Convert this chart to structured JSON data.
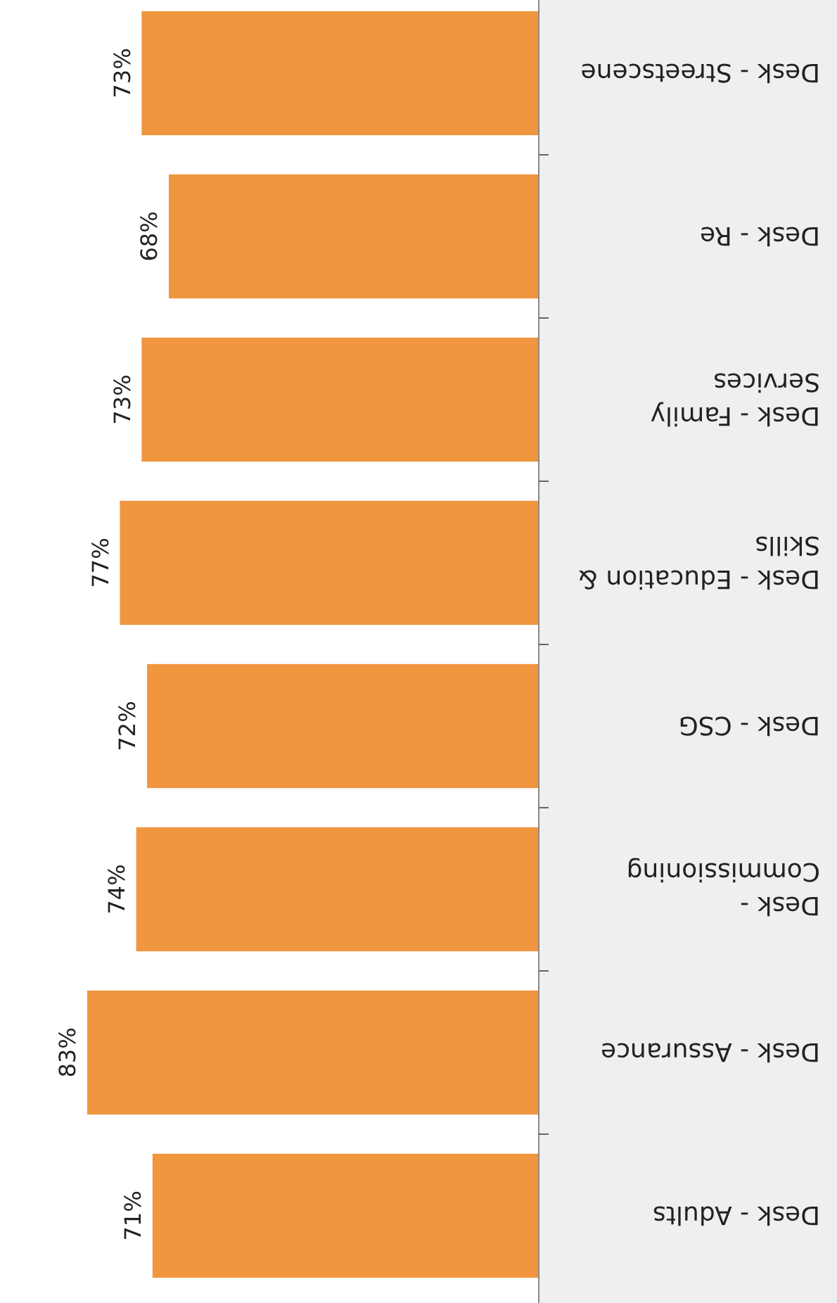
{
  "chart_data": {
    "type": "bar",
    "orientation": "horizontal",
    "categories": [
      "Desk - Streetscene",
      "Desk - Re",
      "Desk - Family Services",
      "Desk - Education & Skills",
      "Desk - CSG",
      "Desk - Commissioning",
      "Desk - Assurance",
      "Desk - Adults"
    ],
    "values": [
      73,
      68,
      73,
      77,
      72,
      74,
      83,
      71
    ],
    "value_labels": [
      "73%",
      "68%",
      "73%",
      "77%",
      "72%",
      "74%",
      "83%",
      "71%"
    ],
    "color": "#f0963f"
  }
}
